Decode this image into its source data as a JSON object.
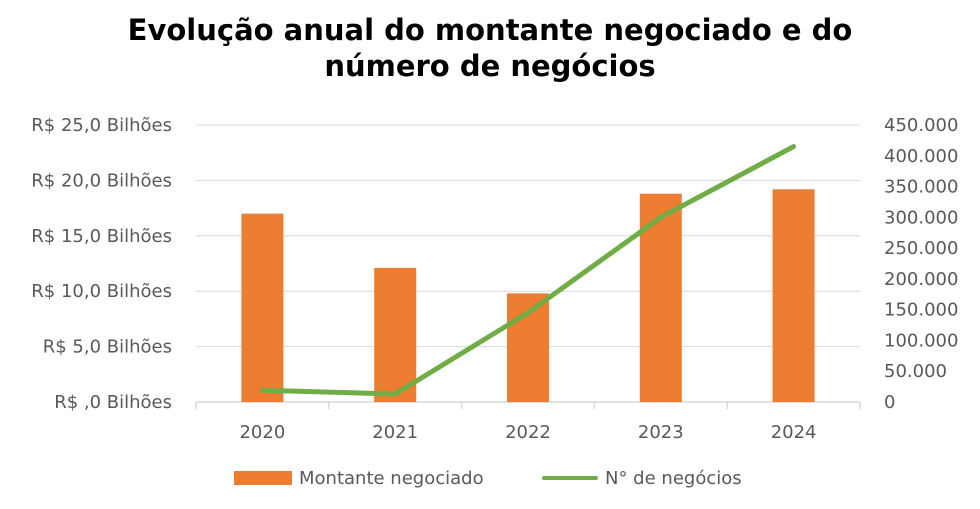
{
  "colors": {
    "bar": "#ED7D31",
    "line": "#70AD47",
    "grid": "#D9D9D9",
    "text": "#595959"
  },
  "chart_data": {
    "type": "bar",
    "title_line1": "Evolução anual do montante negociado e do",
    "title_line2": "número de negócios",
    "categories": [
      "2020",
      "2021",
      "2022",
      "2023",
      "2024"
    ],
    "series": [
      {
        "name": "Montante negociado",
        "type": "bar",
        "axis": "left",
        "values": [
          17.0,
          12.1,
          9.8,
          18.8,
          19.2
        ]
      },
      {
        "name": "N° de negócios",
        "type": "line",
        "axis": "right",
        "values": [
          19000,
          13000,
          145000,
          300000,
          415000
        ]
      }
    ],
    "y_left": {
      "ylim": [
        0,
        25
      ],
      "tick_labels": [
        "R$ ,0 Bilhões",
        "R$ 5,0 Bilhões",
        "R$ 10,0 Bilhões",
        "R$ 15,0 Bilhões",
        "R$ 20,0 Bilhões",
        "R$ 25,0 Bilhões"
      ]
    },
    "y_right": {
      "ylim": [
        0,
        450000
      ],
      "tick_labels": [
        "0",
        "50.000",
        "100.000",
        "150.000",
        "200.000",
        "250.000",
        "300.000",
        "350.000",
        "400.000",
        "450.000"
      ]
    },
    "grid": true,
    "legend_position": "bottom"
  }
}
